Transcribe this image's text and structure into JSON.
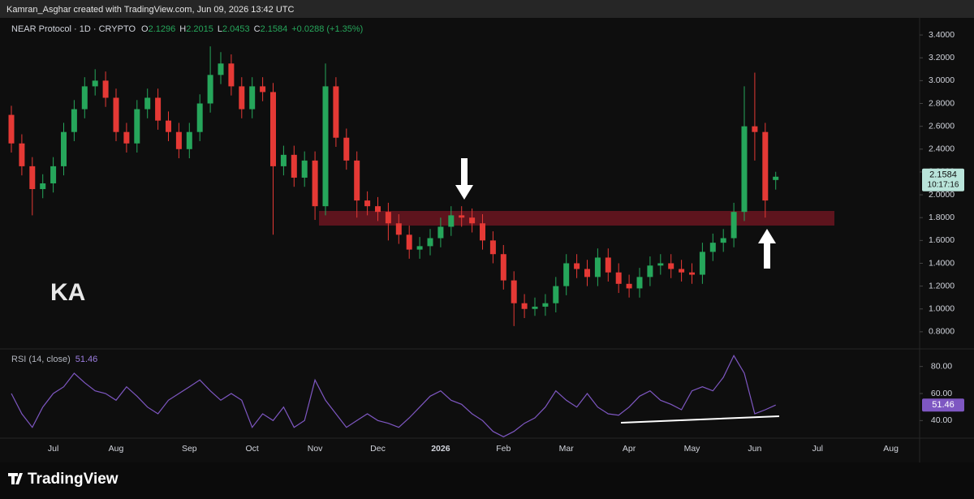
{
  "header": {
    "credit": "Kamran_Asghar created with TradingView.com, Jun 09, 2026 13:42 UTC",
    "brand": "TradingView",
    "watermark": "KA"
  },
  "chart_data": {
    "type": "candlestick",
    "title": "NEAR Protocol · 1D · CRYPTO",
    "ohlc_letters": [
      "O",
      "H",
      "L",
      "C"
    ],
    "change": "+0.0288 (+1.35%)",
    "countdown": "10:17:16",
    "up_color": "#26a65b",
    "down_color": "#e53935",
    "categories": [
      null,
      null,
      null,
      null,
      "Jul",
      null,
      null,
      null,
      null,
      null,
      "Aug",
      null,
      null,
      null,
      null,
      null,
      null,
      "Sep",
      null,
      null,
      null,
      null,
      null,
      "Oct",
      null,
      null,
      null,
      null,
      null,
      "Nov",
      null,
      null,
      null,
      null,
      null,
      "Dec",
      null,
      null,
      null,
      null,
      null,
      "2026",
      null,
      null,
      null,
      null,
      null,
      "Feb",
      null,
      null,
      null,
      null,
      null,
      "Mar",
      null,
      null,
      null,
      null,
      null,
      "Apr",
      null,
      null,
      null,
      null,
      null,
      "May",
      null,
      null,
      null,
      null,
      null,
      "Jun",
      null,
      null,
      null,
      null,
      null,
      "Jul",
      null,
      null,
      null,
      null,
      null,
      null,
      "Aug",
      null,
      null
    ],
    "open": [
      2.7,
      2.45,
      2.25,
      2.05,
      2.1,
      2.25,
      2.55,
      2.75,
      2.95,
      3.0,
      2.85,
      2.55,
      2.45,
      2.75,
      2.85,
      2.65,
      2.55,
      2.4,
      2.55,
      2.8,
      3.05,
      3.15,
      2.95,
      2.75,
      2.95,
      2.9,
      2.25,
      2.35,
      2.15,
      2.3,
      1.9,
      2.95,
      2.5,
      2.3,
      1.95,
      1.9,
      1.85,
      1.75,
      1.65,
      1.52,
      1.55,
      1.62,
      1.72,
      1.82,
      1.8,
      1.75,
      1.6,
      1.48,
      1.25,
      1.05,
      1.0,
      1.02,
      1.05,
      1.2,
      1.4,
      1.35,
      1.28,
      1.45,
      1.32,
      1.22,
      1.18,
      1.28,
      1.38,
      1.4,
      1.35,
      1.32,
      1.3,
      1.5,
      1.58,
      1.62,
      1.85,
      2.6,
      2.55,
      2.1296,
      null,
      null,
      null,
      null,
      null,
      null,
      null,
      null,
      null,
      null,
      null,
      null,
      null
    ],
    "high": [
      2.78,
      2.53,
      2.33,
      2.18,
      2.33,
      2.63,
      2.83,
      3.03,
      3.1,
      3.08,
      2.93,
      2.63,
      2.83,
      2.93,
      2.93,
      2.73,
      2.63,
      2.63,
      2.88,
      3.3,
      3.25,
      3.23,
      3.03,
      3.03,
      3.03,
      2.98,
      2.43,
      2.43,
      2.38,
      2.38,
      3.15,
      3.03,
      2.58,
      2.38,
      2.03,
      1.98,
      1.93,
      1.83,
      1.73,
      1.63,
      1.7,
      1.8,
      1.9,
      1.9,
      1.88,
      1.83,
      1.68,
      1.56,
      1.33,
      1.13,
      1.1,
      1.13,
      1.28,
      1.48,
      1.48,
      1.43,
      1.53,
      1.53,
      1.4,
      1.3,
      1.36,
      1.46,
      1.48,
      1.48,
      1.43,
      1.4,
      1.58,
      1.66,
      1.7,
      1.93,
      2.95,
      3.07,
      2.63,
      2.2015,
      null,
      null,
      null,
      null,
      null,
      null,
      null,
      null,
      null,
      null,
      null,
      null,
      null
    ],
    "low": [
      2.37,
      2.17,
      1.82,
      1.97,
      2.02,
      2.17,
      2.47,
      2.67,
      2.87,
      2.77,
      2.47,
      2.37,
      2.37,
      2.67,
      2.57,
      2.47,
      2.32,
      2.32,
      2.47,
      2.72,
      2.97,
      2.87,
      2.67,
      2.67,
      2.82,
      1.65,
      2.17,
      2.07,
      2.07,
      1.78,
      1.82,
      2.42,
      2.22,
      1.8,
      1.82,
      1.77,
      1.6,
      1.57,
      1.44,
      1.44,
      1.47,
      1.54,
      1.64,
      1.72,
      1.67,
      1.52,
      1.4,
      1.17,
      0.85,
      0.92,
      0.94,
      0.94,
      0.97,
      1.12,
      1.27,
      1.2,
      1.2,
      1.24,
      1.14,
      1.1,
      1.1,
      1.2,
      1.3,
      1.27,
      1.24,
      1.22,
      1.22,
      1.42,
      1.5,
      1.54,
      1.77,
      2.3,
      1.8,
      2.0453,
      null,
      null,
      null,
      null,
      null,
      null,
      null,
      null,
      null,
      null,
      null,
      null,
      null
    ],
    "close": [
      2.45,
      2.25,
      2.05,
      2.1,
      2.25,
      2.55,
      2.75,
      2.95,
      3.0,
      2.85,
      2.55,
      2.45,
      2.75,
      2.85,
      2.65,
      2.55,
      2.4,
      2.55,
      2.8,
      3.05,
      3.15,
      2.95,
      2.75,
      2.95,
      2.9,
      2.25,
      2.35,
      2.15,
      2.3,
      1.9,
      2.95,
      2.5,
      2.3,
      1.95,
      1.9,
      1.85,
      1.75,
      1.65,
      1.52,
      1.55,
      1.62,
      1.72,
      1.82,
      1.8,
      1.75,
      1.6,
      1.48,
      1.25,
      1.05,
      1.0,
      1.02,
      1.05,
      1.2,
      1.4,
      1.35,
      1.28,
      1.45,
      1.32,
      1.22,
      1.18,
      1.28,
      1.38,
      1.4,
      1.35,
      1.32,
      1.3,
      1.5,
      1.58,
      1.62,
      1.85,
      2.6,
      2.55,
      1.95,
      2.1584,
      null,
      null,
      null,
      null,
      null,
      null,
      null,
      null,
      null,
      null,
      null,
      null,
      null
    ],
    "ylim": [
      0.65,
      3.55
    ],
    "yticks": [
      {
        "value": 0.8,
        "label": "0.8000"
      },
      {
        "value": 1.0,
        "label": "1.0000"
      },
      {
        "value": 1.2,
        "label": "1.2000"
      },
      {
        "value": 1.4,
        "label": "1.4000"
      },
      {
        "value": 1.6,
        "label": "1.6000"
      },
      {
        "value": 1.8,
        "label": "1.8000"
      },
      {
        "value": 2.0,
        "label": "2.0000"
      },
      {
        "value": 2.2,
        "label": "2.2000"
      },
      {
        "value": 2.4,
        "label": "2.4000"
      },
      {
        "value": 2.6,
        "label": "2.6000"
      },
      {
        "value": 2.8,
        "label": "2.8000"
      },
      {
        "value": 3.0,
        "label": "3.0000"
      },
      {
        "value": 3.2,
        "label": "3.2000"
      },
      {
        "value": 3.4,
        "label": "3.4000"
      }
    ],
    "rsi": {
      "name": "RSI (14, close)",
      "color": "#7e57c2",
      "values": [
        60,
        45,
        35,
        50,
        60,
        65,
        75,
        68,
        62,
        60,
        55,
        65,
        58,
        50,
        45,
        55,
        60,
        65,
        70,
        62,
        55,
        60,
        55,
        35,
        45,
        40,
        50,
        35,
        40,
        70,
        55,
        45,
        35,
        40,
        45,
        40,
        38,
        35,
        42,
        50,
        58,
        62,
        55,
        52,
        45,
        40,
        32,
        28,
        32,
        38,
        42,
        50,
        62,
        55,
        50,
        60,
        50,
        45,
        44,
        50,
        58,
        62,
        55,
        52,
        48,
        62,
        65,
        62,
        72,
        88,
        75,
        45,
        48,
        51.46,
        null,
        null,
        null,
        null,
        null,
        null,
        null,
        null,
        null,
        null,
        null,
        null,
        null
      ],
      "value_labels": {
        "73": "51.46"
      },
      "ylim": [
        27,
        93
      ],
      "yticks": [
        {
          "value": 40,
          "label": "40.00"
        },
        {
          "value": 60,
          "label": "60.00"
        },
        {
          "value": 80,
          "label": "80.00"
        }
      ]
    }
  }
}
